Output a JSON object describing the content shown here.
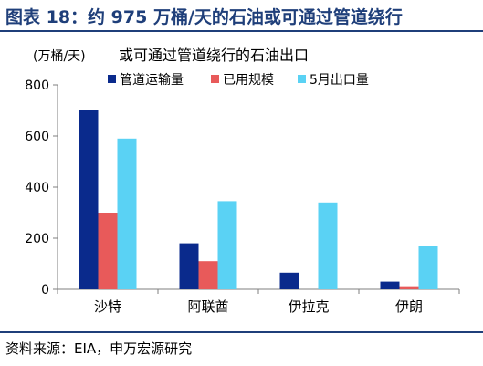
{
  "figure": {
    "title": "图表 18：约 975 万桶/天的石油或可通过管道绕行",
    "source": "资料来源：EIA，申万宏源研究"
  },
  "colors": {
    "title": "#1f3f7a",
    "rule": "#1f3f7a",
    "axis": "#7f7f7f",
    "series": [
      "#0a2a8c",
      "#e85a5a",
      "#5ad2f4"
    ]
  },
  "chart_data": {
    "type": "bar",
    "title": "或可通过管道绕行的石油出口",
    "ylabel": "(万桶/天)",
    "xlabel": "",
    "categories": [
      "沙特",
      "阿联酋",
      "伊拉克",
      "伊朗"
    ],
    "series": [
      {
        "name": "管道运输量",
        "values": [
          700,
          180,
          65,
          30
        ]
      },
      {
        "name": "已用规模",
        "values": [
          300,
          110,
          0,
          12
        ]
      },
      {
        "name": "5月出口量",
        "values": [
          590,
          345,
          340,
          170
        ]
      }
    ],
    "ylim": [
      0,
      800
    ],
    "yticks": [
      0,
      200,
      400,
      600,
      800
    ],
    "grid": false,
    "legend_position": "top"
  }
}
